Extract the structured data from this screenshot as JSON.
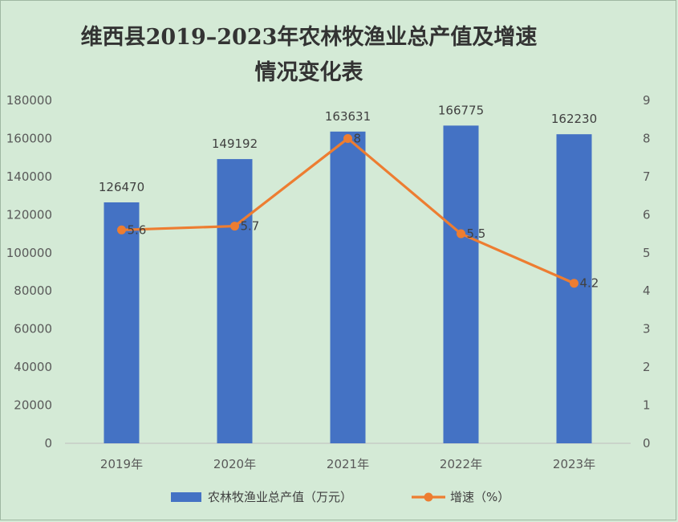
{
  "chart_data": {
    "type": "bar",
    "title_line1": "维西县2019–2023年农林牧渔业总产值及增速",
    "title_line2": "情况变化表",
    "categories": [
      "2019年",
      "2020年",
      "2021年",
      "2022年",
      "2023年"
    ],
    "series": [
      {
        "name": "农林牧渔业总产值（万元）",
        "type": "bar",
        "axis": "left",
        "color": "#4472c4",
        "values": [
          126470,
          149192,
          163631,
          166775,
          162230
        ]
      },
      {
        "name": "增速（%）",
        "type": "line",
        "axis": "right",
        "color": "#ed7d31",
        "values": [
          5.6,
          5.7,
          8,
          5.5,
          4.2
        ]
      }
    ],
    "y_left": {
      "lim": [
        0,
        180000
      ],
      "ticks": [
        "0",
        "20000",
        "40000",
        "60000",
        "80000",
        "100000",
        "120000",
        "140000",
        "160000",
        "180000"
      ]
    },
    "y_right": {
      "lim": [
        0,
        9
      ],
      "ticks": [
        "0",
        "1",
        "2",
        "3",
        "4",
        "5",
        "6",
        "7",
        "8",
        "9"
      ]
    },
    "grid": false,
    "legend_position": "bottom"
  }
}
